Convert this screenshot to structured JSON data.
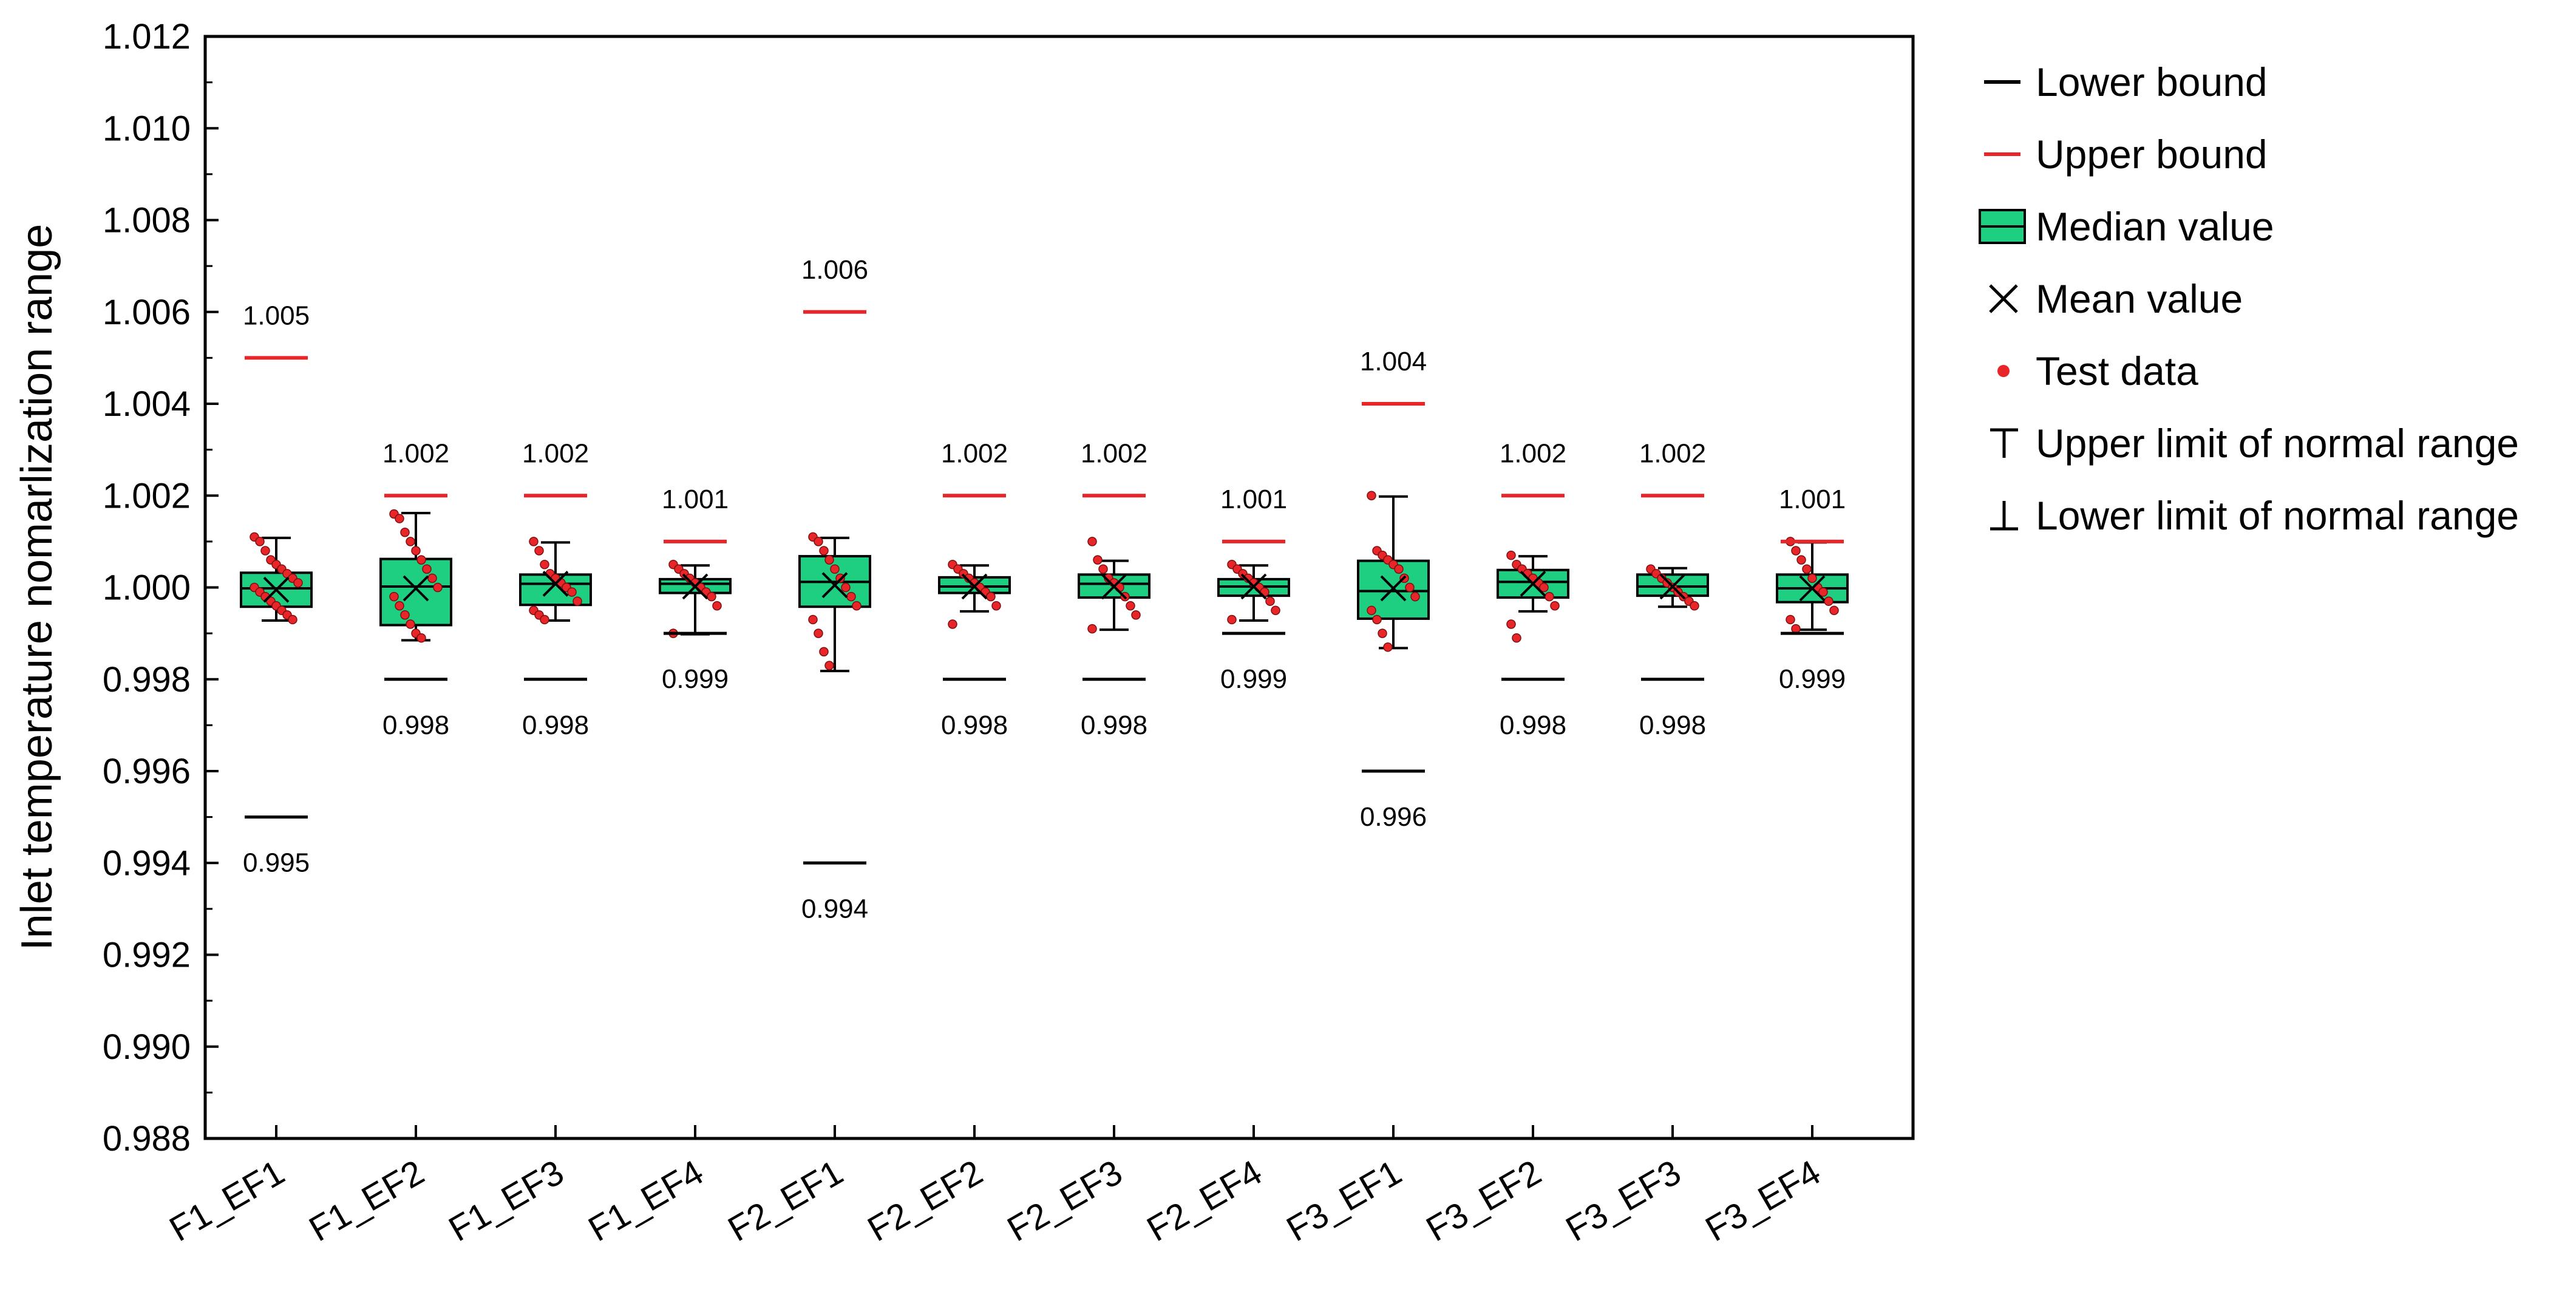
{
  "chart_data": {
    "type": "box",
    "ylabel": "Inlet temperature nomarlization range",
    "ylim": [
      0.988,
      1.012
    ],
    "yticks": [
      "0.988",
      "0.990",
      "0.992",
      "0.994",
      "0.996",
      "0.998",
      "1.000",
      "1.002",
      "1.004",
      "1.006",
      "1.008",
      "1.010",
      "1.012"
    ],
    "grid": false,
    "legend_position": "right",
    "colors": {
      "box": "#1ecf82",
      "upper_bound": "#e8262a",
      "test_data": "#e8262a",
      "lower_bound": "#000000"
    },
    "categories": [
      "F1_EF1",
      "F1_EF2",
      "F1_EF3",
      "F1_EF4",
      "F2_EF1",
      "F2_EF2",
      "F2_EF3",
      "F2_EF4",
      "F3_EF1",
      "F3_EF2",
      "F3_EF3",
      "F3_EF4"
    ],
    "boxes": [
      {
        "q1": 0.99958,
        "median": 0.99998,
        "q3": 1.00032,
        "mean": 0.99995,
        "whisker_low": 0.99928,
        "whisker_high": 1.00108,
        "upper_bound": 1.005,
        "lower_bound": 0.995,
        "upper_label": "1.005",
        "lower_label": "0.995",
        "points": [
          1.0011,
          1.001,
          1.0008,
          1.0006,
          1.0005,
          1.0004,
          1.0003,
          1.0002,
          1.0001,
          1.0,
          0.9999,
          0.9998,
          0.9997,
          0.9996,
          0.9995,
          0.9994,
          0.9993
        ]
      },
      {
        "q1": 0.99918,
        "median": 1.00002,
        "q3": 1.00062,
        "mean": 0.99998,
        "whisker_low": 0.99885,
        "whisker_high": 1.00162,
        "upper_bound": 1.002,
        "lower_bound": 0.998,
        "upper_label": "1.002",
        "lower_label": "0.998",
        "points": [
          1.0016,
          1.0015,
          1.0012,
          1.001,
          1.0008,
          1.0006,
          1.0004,
          1.0002,
          1.0,
          0.9998,
          0.9996,
          0.9994,
          0.9992,
          0.999,
          0.9989
        ]
      },
      {
        "q1": 0.99962,
        "median": 1.00008,
        "q3": 1.00028,
        "mean": 1.00008,
        "whisker_low": 0.99928,
        "whisker_high": 1.00098,
        "upper_bound": 1.002,
        "lower_bound": 0.998,
        "upper_label": "1.002",
        "lower_label": "0.998",
        "points": [
          1.001,
          1.0008,
          1.0005,
          1.0003,
          1.0002,
          1.0001,
          1.0,
          0.9999,
          0.9997,
          0.9995,
          0.9994,
          0.9993
        ]
      },
      {
        "q1": 0.99988,
        "median": 1.00008,
        "q3": 1.00018,
        "mean": 1.00002,
        "whisker_low": 0.99898,
        "whisker_high": 1.00048,
        "upper_bound": 1.001,
        "lower_bound": 0.999,
        "upper_label": "1.001",
        "lower_label": "0.999",
        "points": [
          1.0005,
          1.0004,
          1.0003,
          1.0002,
          1.0001,
          1.0,
          0.9999,
          0.9998,
          0.9996,
          0.999
        ]
      },
      {
        "q1": 0.99958,
        "median": 1.00012,
        "q3": 1.00068,
        "mean": 1.00005,
        "whisker_low": 0.99818,
        "whisker_high": 1.00108,
        "upper_bound": 1.006,
        "lower_bound": 0.994,
        "upper_label": "1.006",
        "lower_label": "0.994",
        "points": [
          1.0011,
          1.001,
          1.0008,
          1.0006,
          1.0004,
          1.0002,
          1.0,
          0.9998,
          0.9996,
          0.9993,
          0.999,
          0.9986,
          0.9983
        ]
      },
      {
        "q1": 0.99988,
        "median": 1.00002,
        "q3": 1.00022,
        "mean": 1.00002,
        "whisker_low": 0.99948,
        "whisker_high": 1.00048,
        "upper_bound": 1.002,
        "lower_bound": 0.998,
        "upper_label": "1.002",
        "lower_label": "0.998",
        "points": [
          1.0005,
          1.0004,
          1.0003,
          1.0002,
          1.0001,
          1.0,
          0.9999,
          0.9998,
          0.9996,
          0.9992
        ]
      },
      {
        "q1": 0.99978,
        "median": 1.00008,
        "q3": 1.00028,
        "mean": 1.00002,
        "whisker_low": 0.99908,
        "whisker_high": 1.00058,
        "upper_bound": 1.002,
        "lower_bound": 0.998,
        "upper_label": "1.002",
        "lower_label": "0.998",
        "points": [
          1.001,
          1.0006,
          1.0004,
          1.0002,
          1.0001,
          1.0,
          0.9998,
          0.9996,
          0.9994,
          0.9991
        ]
      },
      {
        "q1": 0.99982,
        "median": 1.00002,
        "q3": 1.00018,
        "mean": 1.00002,
        "whisker_low": 0.99928,
        "whisker_high": 1.00048,
        "upper_bound": 1.001,
        "lower_bound": 0.999,
        "upper_label": "1.001",
        "lower_label": "0.999",
        "points": [
          1.0005,
          1.0004,
          1.0003,
          1.0002,
          1.0001,
          1.0,
          0.9999,
          0.9997,
          0.9995,
          0.9993
        ]
      },
      {
        "q1": 0.99932,
        "median": 0.99992,
        "q3": 1.00058,
        "mean": 0.99998,
        "whisker_low": 0.99868,
        "whisker_high": 1.00198,
        "upper_bound": 1.004,
        "lower_bound": 0.996,
        "upper_label": "1.004",
        "lower_label": "0.996",
        "points": [
          1.002,
          1.0008,
          1.0007,
          1.0006,
          1.0005,
          1.0004,
          1.0002,
          1.0,
          0.9998,
          0.9995,
          0.9993,
          0.999,
          0.9987
        ]
      },
      {
        "q1": 0.99978,
        "median": 1.00012,
        "q3": 1.00038,
        "mean": 1.00008,
        "whisker_low": 0.99948,
        "whisker_high": 1.00068,
        "upper_bound": 1.002,
        "lower_bound": 0.998,
        "upper_label": "1.002",
        "lower_label": "0.998",
        "points": [
          1.0007,
          1.0005,
          1.0004,
          1.0003,
          1.0002,
          1.0001,
          1.0,
          0.9998,
          0.9996,
          0.9992,
          0.9989
        ]
      },
      {
        "q1": 0.99982,
        "median": 1.00002,
        "q3": 1.00028,
        "mean": 1.00002,
        "whisker_low": 0.99958,
        "whisker_high": 1.00042,
        "upper_bound": 1.002,
        "lower_bound": 0.998,
        "upper_label": "1.002",
        "lower_label": "0.998",
        "points": [
          1.0004,
          1.0003,
          1.0002,
          1.0001,
          1.0,
          0.9999,
          0.9998,
          0.9997,
          0.9996
        ]
      },
      {
        "q1": 0.99968,
        "median": 0.99998,
        "q3": 1.00028,
        "mean": 0.99998,
        "whisker_low": 0.99908,
        "whisker_high": 1.00098,
        "upper_bound": 1.001,
        "lower_bound": 0.999,
        "upper_label": "1.001",
        "lower_label": "0.999",
        "points": [
          1.001,
          1.0008,
          1.0006,
          1.0004,
          1.0002,
          1.0,
          0.9999,
          0.9997,
          0.9995,
          0.9993,
          0.9991
        ]
      }
    ],
    "legend": [
      {
        "key": "lower_bound",
        "label": "Lower bound",
        "icon": "black-dash-icon"
      },
      {
        "key": "upper_bound",
        "label": "Upper bound",
        "icon": "red-dash-icon"
      },
      {
        "key": "median",
        "label": "Median value",
        "icon": "green-box-icon"
      },
      {
        "key": "mean",
        "label": "Mean value",
        "icon": "x-mark-icon"
      },
      {
        "key": "test_data",
        "label": "Test data",
        "icon": "red-dot-icon"
      },
      {
        "key": "upper_limit",
        "label": "Upper limit of normal range",
        "icon": "upper-limit-icon"
      },
      {
        "key": "lower_limit",
        "label": "Lower limit of normal range",
        "icon": "lower-limit-icon"
      }
    ]
  }
}
